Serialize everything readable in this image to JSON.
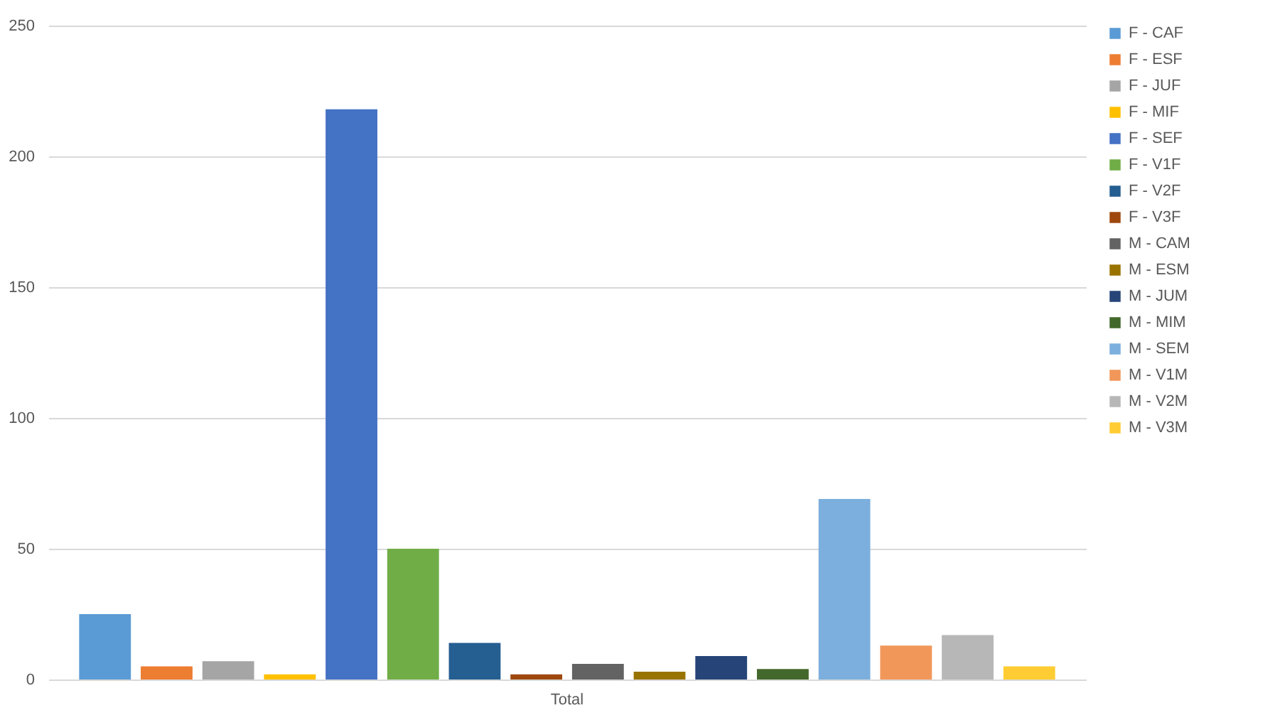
{
  "chart_data": {
    "type": "bar",
    "categories": [
      "Total"
    ],
    "ylim": [
      0,
      250
    ],
    "yticks": [
      0,
      50,
      100,
      150,
      200,
      250
    ],
    "grid": "y",
    "legend": "right",
    "series": [
      {
        "name": "F - CAF",
        "color": "#5b9bd5",
        "values": [
          25
        ]
      },
      {
        "name": "F - ESF",
        "color": "#ed7d31",
        "values": [
          5
        ]
      },
      {
        "name": "F - JUF",
        "color": "#a5a5a5",
        "values": [
          7
        ]
      },
      {
        "name": "F - MIF",
        "color": "#ffc000",
        "values": [
          2
        ]
      },
      {
        "name": "F - SEF",
        "color": "#4472c4",
        "values": [
          218
        ]
      },
      {
        "name": "F - V1F",
        "color": "#70ad47",
        "values": [
          50
        ]
      },
      {
        "name": "F - V2F",
        "color": "#255e91",
        "values": [
          14
        ]
      },
      {
        "name": "F - V3F",
        "color": "#9e480e",
        "values": [
          2
        ]
      },
      {
        "name": "M - CAM",
        "color": "#636363",
        "values": [
          6
        ]
      },
      {
        "name": "M - ESM",
        "color": "#997300",
        "values": [
          3
        ]
      },
      {
        "name": "M - JUM",
        "color": "#264478",
        "values": [
          9
        ]
      },
      {
        "name": "M - MIM",
        "color": "#43682b",
        "values": [
          4
        ]
      },
      {
        "name": "M - SEM",
        "color": "#7cafdd",
        "values": [
          69
        ]
      },
      {
        "name": "M - V1M",
        "color": "#f1975a",
        "values": [
          13
        ]
      },
      {
        "name": "M - V2M",
        "color": "#b7b7b7",
        "values": [
          17
        ]
      },
      {
        "name": "M - V3M",
        "color": "#ffcd33",
        "values": [
          5
        ]
      }
    ]
  }
}
